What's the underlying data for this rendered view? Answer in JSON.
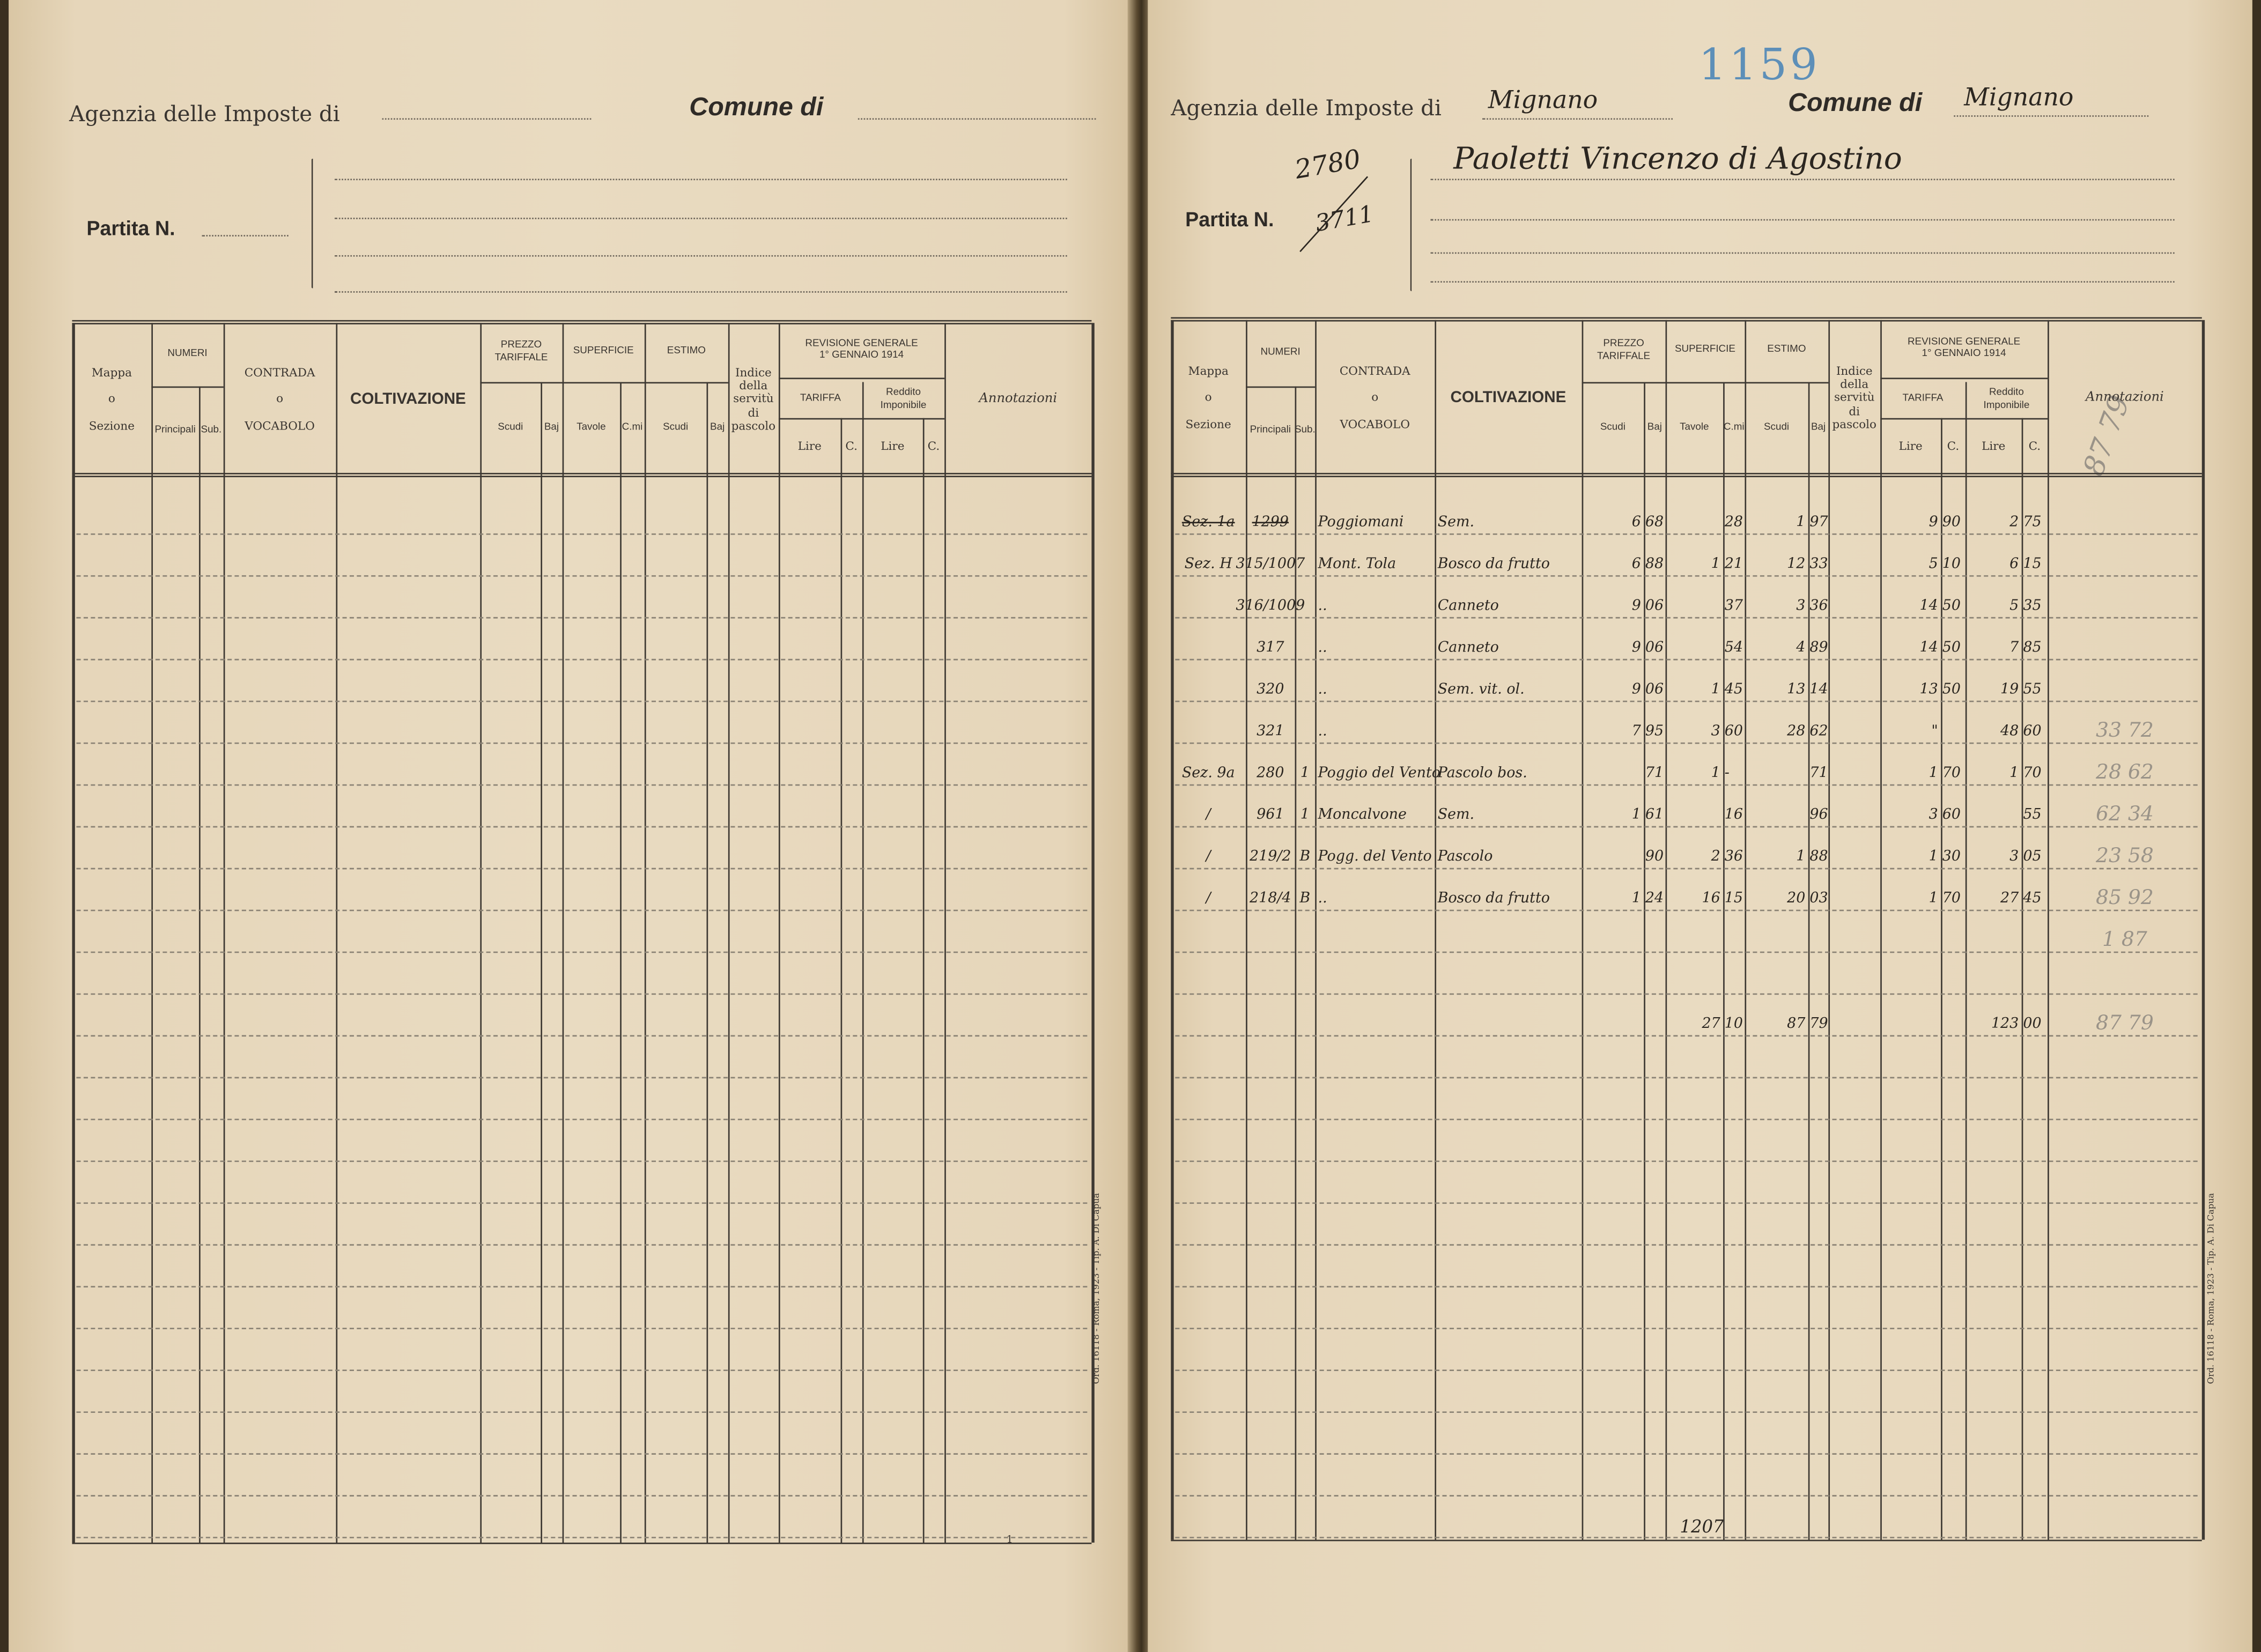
{
  "header_labels": {
    "agenzia": "Agenzia delle Imposte di",
    "comune": "Comune di",
    "partita": "Partita N."
  },
  "table_header": {
    "mappa": "Mappa\n\no\n\nSezione",
    "numeri": "NUMERI",
    "principali": "Principali",
    "sub": "Sub.",
    "contrada": "CONTRADA\n\no\n\nVOCABOLO",
    "coltivazione": "COLTIVAZIONE",
    "prezzo": "PREZZO\nTARIFFALE",
    "superficie": "SUPERFICIE",
    "estimo": "ESTIMO",
    "scudi": "Scudi",
    "baj": "Baj",
    "tavole": "Tavole",
    "cmi": "C.mi",
    "indice": "Indice\ndella\nservitù\ndi\npascolo",
    "revisione": "REVISIONE GENERALE\n1° GENNAIO 1914",
    "tariffa": "TARIFFA",
    "reddito": "Reddito Imponibile",
    "lire": "Lire",
    "c": "C.",
    "annotazioni": "Annotazioni"
  },
  "left_page": {
    "agenzia_value": "",
    "comune_value": "",
    "partita_value": "",
    "intestazione": "",
    "printer_imprint": "Ord. 16118 - Roma, 1923 - Tip. A. Di Capua",
    "page_number": "1",
    "rows": []
  },
  "right_page": {
    "archive_number": "1159",
    "agenzia_value": "Mignano",
    "comune_value": "Mignano",
    "partita_value": "2780",
    "partita_previous": "3711",
    "intestazione": "Paoletti Vincenzo di Agostino",
    "header_annotation": "87 79",
    "bottom_note": "1207",
    "printer_imprint": "Ord. 16118 - Roma, 1923 - Tip. A. Di Capua",
    "rows": [
      {
        "cells": [
          "Sez. 1a",
          "1299",
          "",
          "Poggiomani",
          "Sem.",
          "6",
          "68",
          "",
          "28",
          "1",
          "97",
          "",
          "9",
          "90",
          "2",
          "75",
          ""
        ],
        "struck": [
          0,
          1
        ]
      },
      {
        "cells": [
          "Sez. H",
          "315/1007",
          "",
          "Mont. Tola",
          "Bosco da frutto",
          "6",
          "88",
          "1",
          "21",
          "12",
          "33",
          "",
          "5",
          "10",
          "6",
          "15",
          ""
        ]
      },
      {
        "cells": [
          "",
          "316/1009",
          "",
          "..",
          "Canneto",
          "9",
          "06",
          "",
          "37",
          "3",
          "36",
          "",
          "14",
          "50",
          "5",
          "35",
          ""
        ]
      },
      {
        "cells": [
          "",
          "317",
          "",
          "..",
          "Canneto",
          "9",
          "06",
          "",
          "54",
          "4",
          "89",
          "",
          "14",
          "50",
          "7",
          "85",
          ""
        ]
      },
      {
        "cells": [
          "",
          "320",
          "",
          "..",
          "Sem. vit. ol.",
          "9",
          "06",
          "1",
          "45",
          "13",
          "14",
          "",
          "13",
          "50",
          "19",
          "55",
          ""
        ]
      },
      {
        "cells": [
          "",
          "321",
          "",
          "..",
          "",
          "7",
          "95",
          "3",
          "60",
          "28",
          "62",
          "",
          "\"",
          "",
          "48",
          "60",
          "33 72"
        ]
      },
      {
        "cells": [
          "Sez. 9a",
          "280",
          "1",
          "Poggio del Vento",
          "Pascolo bos.",
          "",
          "71",
          "1",
          "-",
          "",
          "71",
          "",
          "1",
          "70",
          "1",
          "70",
          "28 62"
        ]
      },
      {
        "cells": [
          "/",
          "961",
          "1",
          "Moncalvone",
          "Sem.",
          "1",
          "61",
          "",
          "16",
          "",
          "96",
          "",
          "3",
          "60",
          "",
          "55",
          "62 34"
        ]
      },
      {
        "cells": [
          "/",
          "219/2",
          "B",
          "Pogg. del Vento",
          "Pascolo",
          "",
          "90",
          "2",
          "36",
          "1",
          "88",
          "",
          "1",
          "30",
          "3",
          "05",
          "23 58"
        ]
      },
      {
        "cells": [
          "/",
          "218/4",
          "B",
          "..",
          "Bosco da frutto",
          "1",
          "24",
          "16",
          "15",
          "20",
          "03",
          "",
          "1",
          "70",
          "27",
          "45",
          "85 92"
        ]
      },
      {
        "cells": [
          "",
          "",
          "",
          "",
          "",
          "",
          "",
          "",
          "",
          "",
          "",
          "",
          "",
          "",
          "",
          "",
          "1 87"
        ]
      },
      {
        "cells": [
          "",
          "",
          "",
          "",
          "",
          "",
          "",
          "27",
          "10",
          "87",
          "79",
          "",
          "",
          "",
          "123",
          "00",
          "87 79"
        ],
        "total": true
      }
    ]
  },
  "colors": {
    "paper": "#e9dbc1",
    "ink": "#2b2620",
    "print": "#3a3530",
    "pencil": "#9a9388",
    "archive_blue": "#5d8fb8",
    "gutter": "#3b2f1e"
  }
}
